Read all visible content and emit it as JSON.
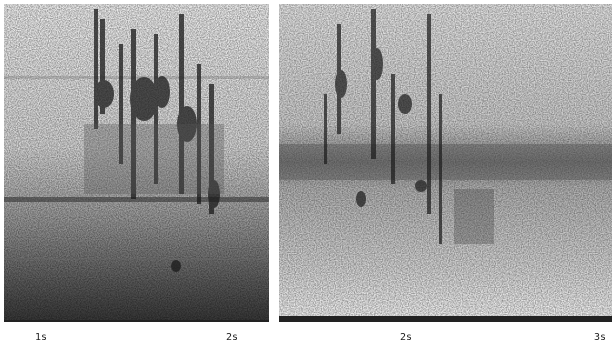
{
  "panels": [
    {
      "ticks": [
        "1s",
        "2s"
      ]
    },
    {
      "ticks": [
        "2s",
        "3s"
      ]
    }
  ]
}
